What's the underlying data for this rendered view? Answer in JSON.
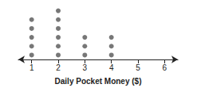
{
  "chart_data": {
    "type": "dot",
    "x_label": "Daily Pocket Money ($)",
    "x": [
      1,
      2,
      3,
      4
    ],
    "values": [
      5,
      6,
      3,
      3
    ],
    "color": "#555555",
    "xlim": [
      0.5,
      6.5
    ],
    "xticks": [
      1,
      2,
      3,
      4,
      5,
      6
    ],
    "grid": false,
    "tick_labels": "x"
  }
}
